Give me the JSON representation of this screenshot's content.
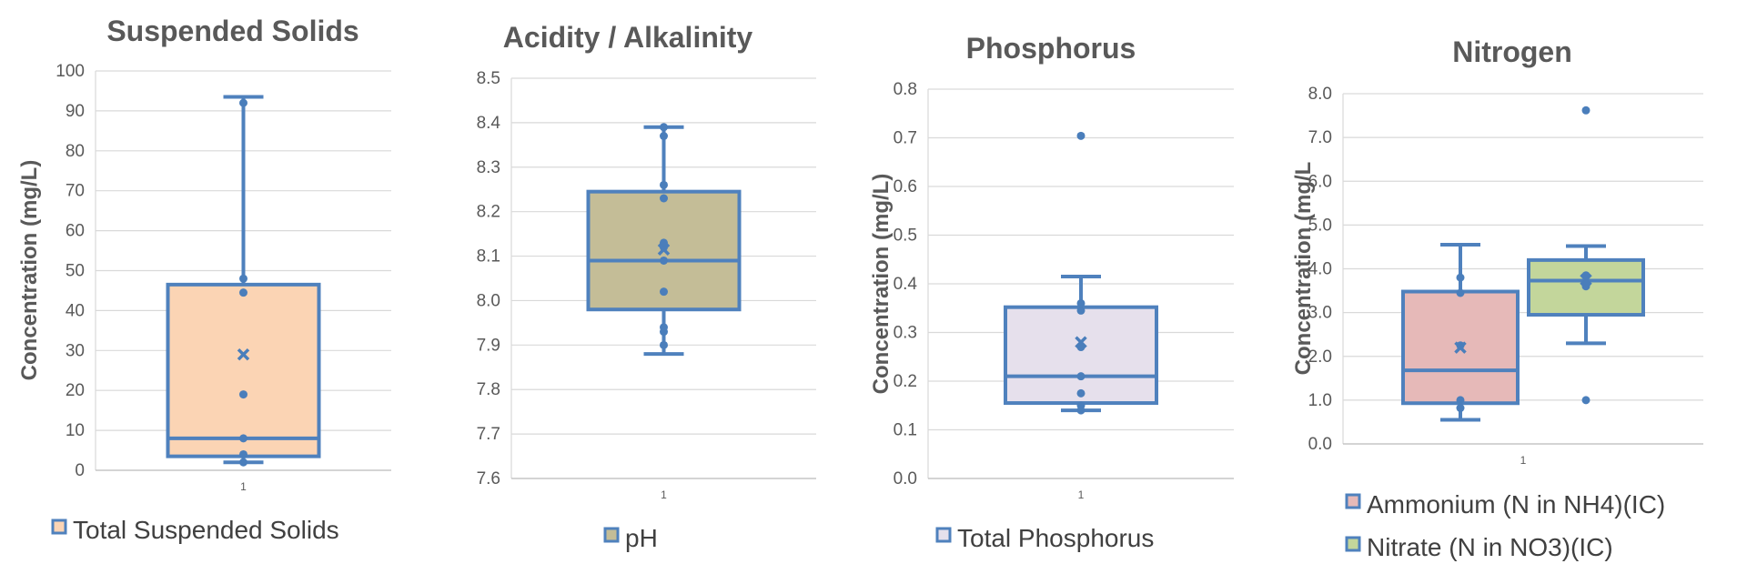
{
  "chart_data": [
    {
      "type": "box",
      "title": "Suspended Solids",
      "ylabel": "Concentration (mg/L)",
      "ylim": [
        0,
        100
      ],
      "yticks": [
        "0",
        "10",
        "20",
        "30",
        "40",
        "50",
        "60",
        "70",
        "80",
        "90",
        "100"
      ],
      "xticks": [
        "1"
      ],
      "grid": true,
      "legend_position": "bottom",
      "series": [
        {
          "name": "Total Suspended Solids",
          "color": "#fbd4b4",
          "whisker_low": 2,
          "q1": 3.5,
          "median": 8,
          "q3": 46.5,
          "whisker_high": 93.5,
          "mean": 29,
          "points": [
            2,
            4,
            8,
            19,
            44.5,
            48,
            92
          ]
        }
      ]
    },
    {
      "type": "box",
      "title": "Acidity / Alkalinity",
      "ylabel": "",
      "ylim": [
        7.6,
        8.5
      ],
      "yticks": [
        "7.6",
        "7.7",
        "7.8",
        "7.9",
        "8.0",
        "8.1",
        "8.2",
        "8.3",
        "8.4",
        "8.5"
      ],
      "xticks": [
        "1"
      ],
      "grid": true,
      "legend_position": "bottom",
      "series": [
        {
          "name": "pH",
          "color": "#c4bd97",
          "whisker_low": 7.88,
          "q1": 7.98,
          "median": 8.09,
          "q3": 8.245,
          "whisker_high": 8.39,
          "mean": 8.115,
          "points": [
            7.9,
            7.93,
            7.94,
            8.02,
            8.09,
            8.12,
            8.13,
            8.23,
            8.26,
            8.37,
            8.39
          ]
        }
      ]
    },
    {
      "type": "box",
      "title": "Phosphorus",
      "ylabel": "Concentration (mg/L)",
      "ylim": [
        0,
        0.8
      ],
      "yticks": [
        "0.0",
        "0.1",
        "0.2",
        "0.3",
        "0.4",
        "0.5",
        "0.6",
        "0.7",
        "0.8"
      ],
      "xticks": [
        "1"
      ],
      "grid": true,
      "legend_position": "bottom",
      "series": [
        {
          "name": "Total Phosphorus",
          "color": "#e6e0ec",
          "whisker_low": 0.14,
          "q1": 0.155,
          "median": 0.21,
          "q3": 0.352,
          "whisker_high": 0.415,
          "mean": 0.28,
          "points": [
            0.14,
            0.15,
            0.175,
            0.21,
            0.27,
            0.345,
            0.36,
            0.704
          ]
        }
      ]
    },
    {
      "type": "box",
      "title": "Nitrogen",
      "ylabel": "Concentration (mg/L",
      "ylim": [
        0,
        8
      ],
      "yticks": [
        "0.0",
        "1.0",
        "2.0",
        "3.0",
        "4.0",
        "5.0",
        "6.0",
        "7.0",
        "8.0"
      ],
      "xticks": [
        "1"
      ],
      "grid": true,
      "legend_position": "bottom",
      "series": [
        {
          "name": "Ammonium (N in NH4)(IC)",
          "color": "#e6b9b8",
          "whisker_low": 0.55,
          "q1": 0.93,
          "median": 1.68,
          "q3": 3.48,
          "whisker_high": 4.55,
          "mean": 2.2,
          "points": [
            0.82,
            1.0,
            2.25,
            3.45,
            3.8
          ]
        },
        {
          "name": "Nitrate (N in NO3)(IC)",
          "color": "#c3d69b",
          "whisker_low": 2.3,
          "q1": 2.95,
          "median": 3.73,
          "q3": 4.2,
          "whisker_high": 4.52,
          "mean": 3.75,
          "points": [
            1.0,
            3.6,
            3.85,
            7.62
          ]
        }
      ]
    }
  ],
  "style": {
    "box_outline": "#4f81bd",
    "marker_color": "#4a7ebb",
    "grid_color": "#d9d9d9",
    "text_color": "#595959"
  }
}
